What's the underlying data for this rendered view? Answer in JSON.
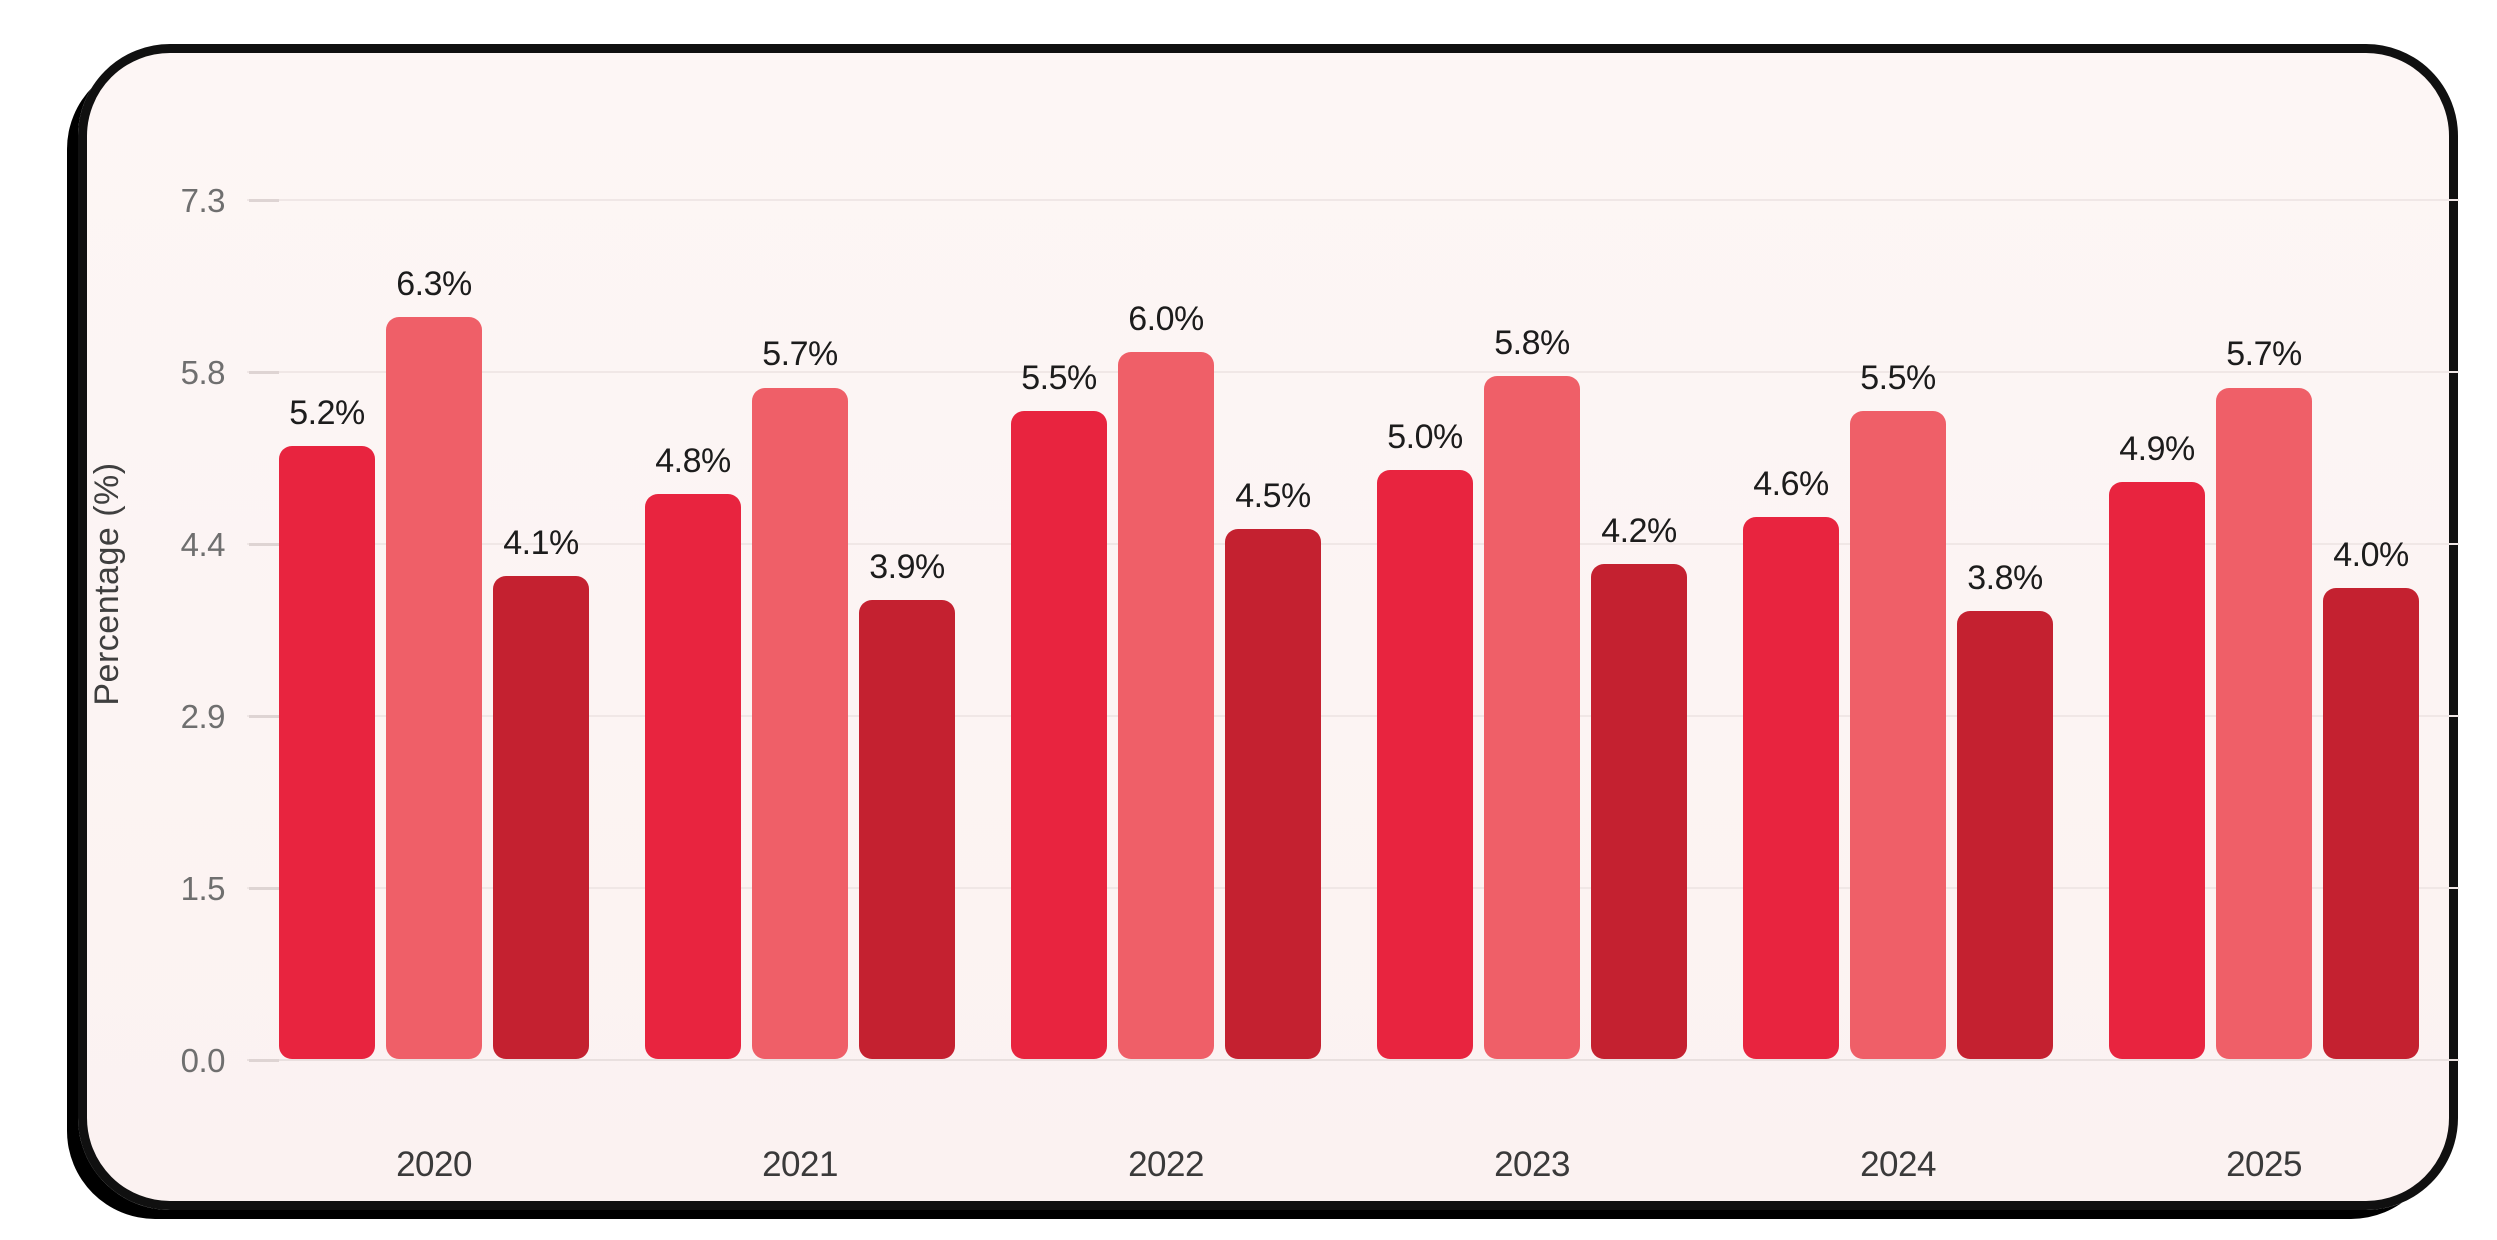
{
  "page": {
    "background_color": "#ffffff",
    "card_background_color": "#fcf4f3",
    "card_border_color": "#101010"
  },
  "chart_data": {
    "type": "bar",
    "title": "",
    "xlabel": "",
    "ylabel": "Percentage (%)",
    "categories": [
      "2020",
      "2021",
      "2022",
      "2023",
      "2024",
      "2025"
    ],
    "series": [
      {
        "color": "#e8243f",
        "values": [
          5.2,
          4.8,
          5.5,
          5.0,
          4.6,
          4.9
        ],
        "labels": [
          "5.2%",
          "4.8%",
          "5.5%",
          "5.0%",
          "4.6%",
          "4.9%"
        ]
      },
      {
        "color": "#ef5f68",
        "values": [
          6.3,
          5.7,
          6.0,
          5.8,
          5.5,
          5.7
        ],
        "labels": [
          "6.3%",
          "5.7%",
          "6.0%",
          "5.8%",
          "5.5%",
          "5.7%"
        ]
      },
      {
        "color": "#c42130",
        "values": [
          4.1,
          3.9,
          4.5,
          4.2,
          3.8,
          4.0
        ],
        "labels": [
          "4.1%",
          "3.9%",
          "4.5%",
          "4.2%",
          "3.8%",
          "4.0%"
        ]
      }
    ],
    "ylim": [
      0,
      7.3
    ],
    "yticks": [
      {
        "value": 0.0,
        "label": "0.0"
      },
      {
        "value": 1.46,
        "label": "1.5"
      },
      {
        "value": 2.92,
        "label": "2.9"
      },
      {
        "value": 4.38,
        "label": "4.4"
      },
      {
        "value": 5.84,
        "label": "5.8"
      },
      {
        "value": 7.3,
        "label": "7.3"
      }
    ],
    "grid": true,
    "legend": false,
    "value_label_color": "#1c1c1c",
    "tick_label_color": "#6f6f6f",
    "category_label_color": "#3a3a3a",
    "gridline_color": "#f0e7e6"
  }
}
